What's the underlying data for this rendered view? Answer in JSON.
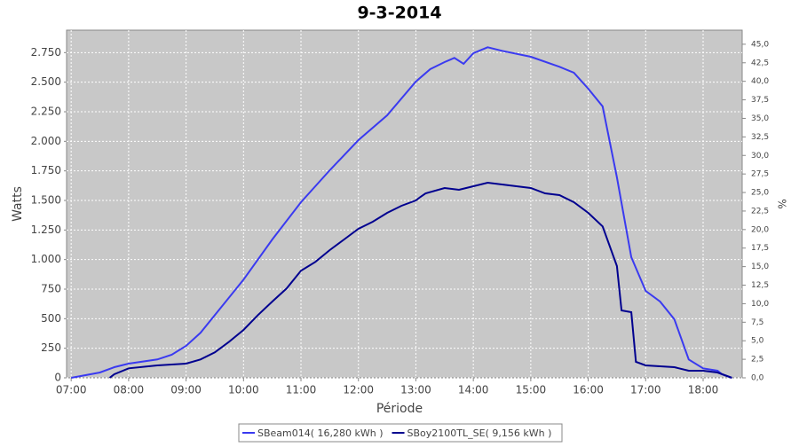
{
  "chart_data": {
    "type": "line",
    "title": "9-3-2014",
    "x_label": "Période",
    "y_label": "Watts",
    "y2_label": "%",
    "grid": true,
    "legend": "bottom",
    "xlim": [
      6.92,
      18.68
    ],
    "xticks": [
      {
        "value": 7,
        "label": "07:00"
      },
      {
        "value": 8,
        "label": "08:00"
      },
      {
        "value": 9,
        "label": "09:00"
      },
      {
        "value": 10,
        "label": "10:00"
      },
      {
        "value": 11,
        "label": "11:00"
      },
      {
        "value": 12,
        "label": "12:00"
      },
      {
        "value": 13,
        "label": "13:00"
      },
      {
        "value": 14,
        "label": "14:00"
      },
      {
        "value": 15,
        "label": "15:00"
      },
      {
        "value": 16,
        "label": "16:00"
      },
      {
        "value": 17,
        "label": "17:00"
      },
      {
        "value": 18,
        "label": "18:00"
      }
    ],
    "ylim": [
      0,
      2940
    ],
    "yticks": [
      0,
      250,
      500,
      750,
      {
        "value": 1000,
        "label": "1.000"
      },
      {
        "value": 1250,
        "label": "1.250"
      },
      {
        "value": 1500,
        "label": "1.500"
      },
      {
        "value": 1750,
        "label": "1.750"
      },
      {
        "value": 2000,
        "label": "2.000"
      },
      {
        "value": 2250,
        "label": "2.250"
      },
      {
        "value": 2500,
        "label": "2.500"
      },
      {
        "value": 2750,
        "label": "2.750"
      }
    ],
    "y2lim": [
      0,
      46.9
    ],
    "y2ticks": [
      {
        "value": 0,
        "label": "0,0"
      },
      {
        "value": 2.5,
        "label": "2,5"
      },
      {
        "value": 5,
        "label": "5,0"
      },
      {
        "value": 7.5,
        "label": "7,5"
      },
      {
        "value": 10,
        "label": "10,0"
      },
      {
        "value": 12.5,
        "label": "12,5"
      },
      {
        "value": 15,
        "label": "15,0"
      },
      {
        "value": 17.5,
        "label": "17,5"
      },
      {
        "value": 20,
        "label": "20,0"
      },
      {
        "value": 22.5,
        "label": "22,5"
      },
      {
        "value": 25,
        "label": "25,0"
      },
      {
        "value": 27.5,
        "label": "27,5"
      },
      {
        "value": 30,
        "label": "30,0"
      },
      {
        "value": 32.5,
        "label": "32,5"
      },
      {
        "value": 35,
        "label": "35,0"
      },
      {
        "value": 37.5,
        "label": "37,5"
      },
      {
        "value": 40,
        "label": "40,0"
      },
      {
        "value": 42.5,
        "label": "42,5"
      },
      {
        "value": 45,
        "label": "45,0"
      }
    ],
    "series": [
      {
        "name": "SBeam014( 16,280 kWh )",
        "color": "#3a3af0",
        "x": [
          7,
          7.5,
          7.75,
          8,
          8.5,
          8.75,
          9,
          9.25,
          9.5,
          10,
          10.5,
          11,
          11.5,
          12,
          12.5,
          13,
          13.25,
          13.5,
          13.67,
          13.83,
          14,
          14.25,
          14.5,
          15,
          15.5,
          15.75,
          16,
          16.25,
          16.5,
          16.75,
          17,
          17.25,
          17.5,
          17.75,
          18,
          18.25,
          18.33,
          18.5
        ],
        "values": [
          0,
          45,
          90,
          120,
          155,
          195,
          270,
          380,
          530,
          830,
          1170,
          1485,
          1755,
          2010,
          2220,
          2505,
          2610,
          2670,
          2705,
          2655,
          2745,
          2795,
          2765,
          2715,
          2630,
          2580,
          2445,
          2295,
          1695,
          1020,
          735,
          645,
          495,
          155,
          80,
          60,
          30,
          0
        ]
      },
      {
        "name": "SBoy2100TL_SE( 9,156 kWh )",
        "color": "#00008f",
        "x": [
          7.67,
          7.75,
          8,
          8.5,
          9,
          9.25,
          9.5,
          9.75,
          10,
          10.25,
          10.5,
          10.75,
          11,
          11.25,
          11.5,
          11.75,
          12,
          12.25,
          12.5,
          12.75,
          13,
          13.08,
          13.17,
          13.5,
          13.75,
          14,
          14.25,
          14.5,
          15,
          15.25,
          15.5,
          15.75,
          16,
          16.25,
          16.5,
          16.58,
          16.75,
          16.83,
          17,
          17.5,
          17.75,
          18,
          18.25,
          18.5
        ],
        "values": [
          0,
          30,
          80,
          105,
          120,
          155,
          215,
          305,
          405,
          530,
          645,
          755,
          905,
          980,
          1080,
          1170,
          1260,
          1320,
          1395,
          1455,
          1500,
          1530,
          1560,
          1605,
          1590,
          1620,
          1650,
          1635,
          1605,
          1560,
          1545,
          1485,
          1395,
          1280,
          945,
          570,
          555,
          135,
          105,
          90,
          60,
          60,
          45,
          0
        ]
      }
    ]
  }
}
